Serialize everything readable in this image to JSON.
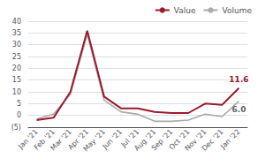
{
  "chart_data": {
    "type": "line",
    "categories": [
      "Jan '21",
      "Feb '21",
      "Mar '21",
      "Apr '21",
      "May '21",
      "Jun '21",
      "Jul '21",
      "Aug '21",
      "Sep '21",
      "Oct '21",
      "Nov '21",
      "Dec '21",
      "Jan '22"
    ],
    "series": [
      {
        "name": "Value",
        "color": "#9b1b2a",
        "values": [
          -2.0,
          -1.0,
          10.0,
          36.0,
          8.0,
          3.0,
          3.0,
          1.5,
          1.0,
          1.0,
          5.0,
          4.5,
          11.6
        ]
      },
      {
        "name": "Volume",
        "color": "#aaaaaa",
        "values": [
          -1.5,
          0.5,
          9.0,
          34.5,
          6.5,
          1.5,
          0.5,
          -2.5,
          -2.5,
          -2.0,
          0.5,
          -0.5,
          6.0
        ]
      }
    ],
    "annotations": [
      {
        "text": "11.6",
        "series": "Value"
      },
      {
        "text": "6.0",
        "series": "Volume"
      }
    ],
    "ylim": [
      -5,
      40
    ],
    "yticks": [
      {
        "value": -5,
        "label": "(5)"
      },
      0,
      5,
      10,
      15,
      20,
      25,
      30,
      35,
      40
    ],
    "grid": true,
    "legend": "upper right"
  }
}
